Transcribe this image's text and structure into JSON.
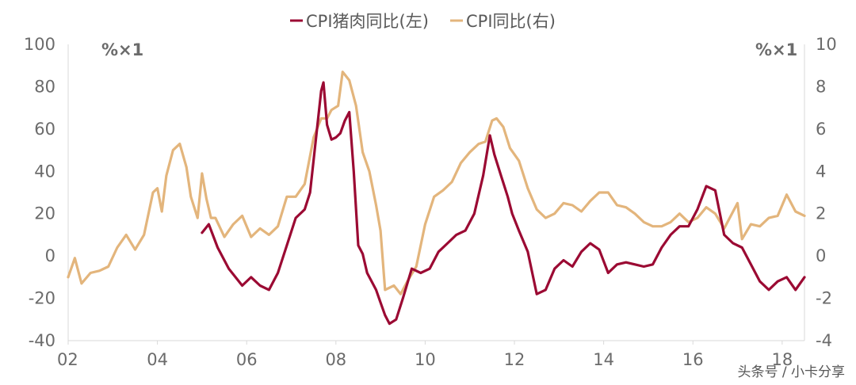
{
  "chart_data": {
    "type": "line",
    "legend_position": "top-center",
    "grid": false,
    "x_ticks": [
      "02",
      "04",
      "06",
      "08",
      "10",
      "12",
      "14",
      "16",
      "18"
    ],
    "x_start": 2002.0,
    "x_end": 2018.5,
    "y_left": {
      "unit": "%×1",
      "ticks": [
        100,
        80,
        60,
        40,
        20,
        0,
        -20,
        -40
      ],
      "ylim": [
        -40,
        100
      ]
    },
    "y_right": {
      "unit": "%×1",
      "ticks": [
        10,
        8,
        6,
        4,
        2,
        0,
        -2,
        -4
      ],
      "ylim": [
        -4,
        10
      ]
    },
    "colors": {
      "pork": "#9b0a33",
      "cpi": "#e3b57c"
    },
    "series": [
      {
        "name": "CPI猪肉同比(左)",
        "axis": "left",
        "x": [
          2005.0,
          2005.15,
          2005.35,
          2005.6,
          2005.9,
          2006.1,
          2006.3,
          2006.5,
          2006.7,
          2006.9,
          2007.1,
          2007.3,
          2007.42,
          2007.55,
          2007.67,
          2007.72,
          2007.8,
          2007.9,
          2008.0,
          2008.1,
          2008.2,
          2008.3,
          2008.4,
          2008.5,
          2008.6,
          2008.7,
          2008.8,
          2008.9,
          2009.0,
          2009.1,
          2009.2,
          2009.35,
          2009.5,
          2009.7,
          2009.9,
          2010.1,
          2010.3,
          2010.5,
          2010.7,
          2010.9,
          2011.1,
          2011.3,
          2011.45,
          2011.55,
          2011.7,
          2011.85,
          2011.95,
          2012.1,
          2012.3,
          2012.5,
          2012.7,
          2012.9,
          2013.1,
          2013.3,
          2013.5,
          2013.7,
          2013.9,
          2014.1,
          2014.3,
          2014.5,
          2014.7,
          2014.9,
          2015.1,
          2015.3,
          2015.5,
          2015.7,
          2015.9,
          2016.1,
          2016.3,
          2016.5,
          2016.7,
          2016.9,
          2017.1,
          2017.3,
          2017.5,
          2017.7,
          2017.9,
          2018.1,
          2018.3,
          2018.5
        ],
        "values": [
          11,
          15,
          4,
          -6,
          -14,
          -10,
          -14,
          -16,
          -8,
          5,
          18,
          22,
          30,
          55,
          78,
          82,
          62,
          55,
          56,
          58,
          64,
          68,
          40,
          5,
          1,
          -8,
          -12,
          -16,
          -22,
          -28,
          -32,
          -30,
          -20,
          -6,
          -8,
          -6,
          2,
          6,
          10,
          12,
          20,
          38,
          57,
          48,
          38,
          28,
          20,
          12,
          2,
          -18,
          -16,
          -6,
          -2,
          -5,
          2,
          6,
          3,
          -8,
          -4,
          -3,
          -4,
          -5,
          -4,
          4,
          10,
          14,
          14,
          22,
          33,
          31,
          10,
          6,
          4,
          -4,
          -12,
          -16,
          -12,
          -10,
          -16,
          -10
        ]
      },
      {
        "name": "CPI同比(右)",
        "axis": "right",
        "x": [
          2002.0,
          2002.15,
          2002.3,
          2002.5,
          2002.7,
          2002.9,
          2003.1,
          2003.3,
          2003.5,
          2003.7,
          2003.9,
          2004.0,
          2004.1,
          2004.2,
          2004.35,
          2004.5,
          2004.65,
          2004.75,
          2004.9,
          2005.0,
          2005.1,
          2005.2,
          2005.3,
          2005.5,
          2005.7,
          2005.9,
          2006.1,
          2006.3,
          2006.5,
          2006.7,
          2006.9,
          2007.1,
          2007.3,
          2007.5,
          2007.67,
          2007.8,
          2007.9,
          2008.05,
          2008.15,
          2008.3,
          2008.45,
          2008.6,
          2008.75,
          2008.9,
          2009.0,
          2009.1,
          2009.3,
          2009.45,
          2009.6,
          2009.8,
          2010.0,
          2010.2,
          2010.4,
          2010.6,
          2010.8,
          2011.0,
          2011.2,
          2011.35,
          2011.5,
          2011.6,
          2011.75,
          2011.9,
          2012.1,
          2012.3,
          2012.5,
          2012.7,
          2012.9,
          2013.1,
          2013.3,
          2013.5,
          2013.7,
          2013.9,
          2014.1,
          2014.3,
          2014.5,
          2014.7,
          2014.9,
          2015.1,
          2015.3,
          2015.5,
          2015.7,
          2015.9,
          2016.1,
          2016.3,
          2016.5,
          2016.7,
          2016.9,
          2017.0,
          2017.1,
          2017.3,
          2017.5,
          2017.7,
          2017.9,
          2018.1,
          2018.3,
          2018.5
        ],
        "values": [
          -1.0,
          -0.1,
          -1.3,
          -0.8,
          -0.7,
          -0.5,
          0.4,
          1.0,
          0.3,
          1.0,
          3.0,
          3.2,
          2.1,
          3.8,
          5.0,
          5.3,
          4.2,
          2.8,
          1.8,
          3.9,
          2.7,
          1.8,
          1.8,
          0.9,
          1.5,
          1.9,
          0.9,
          1.3,
          1.0,
          1.4,
          2.8,
          2.8,
          3.4,
          5.6,
          6.5,
          6.5,
          6.9,
          7.1,
          8.7,
          8.3,
          7.1,
          4.9,
          4.0,
          2.4,
          1.2,
          -1.6,
          -1.4,
          -1.8,
          -1.2,
          -0.5,
          1.5,
          2.8,
          3.1,
          3.5,
          4.4,
          4.9,
          5.3,
          5.4,
          6.4,
          6.5,
          6.1,
          5.1,
          4.5,
          3.2,
          2.2,
          1.8,
          2.0,
          2.5,
          2.4,
          2.1,
          2.6,
          3.0,
          3.0,
          2.4,
          2.3,
          2.0,
          1.6,
          1.4,
          1.4,
          1.6,
          2.0,
          1.6,
          1.8,
          2.3,
          2.0,
          1.3,
          2.1,
          2.5,
          0.8,
          1.5,
          1.4,
          1.8,
          1.9,
          2.9,
          2.1,
          1.9
        ]
      }
    ]
  },
  "watermark": "头条号 / 小卡分享"
}
